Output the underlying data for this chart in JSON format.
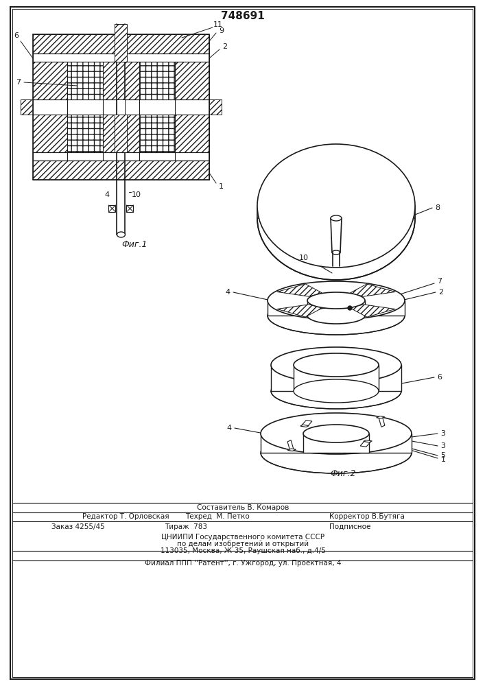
{
  "patent_number": "748691",
  "bg": "#ffffff",
  "lc": "#1a1a1a",
  "fig1_label": "Фиг.1",
  "fig2_label": "Фиг.2",
  "footer": [
    "Составитель В. Комаров",
    "Редактор Т. Орловская",
    "Техред  М. Петко",
    "Корректор В.Бутяга",
    "Заказ 4255/45",
    "Тираж  783",
    "Подписное",
    "ЦНИИПИ Государственного комитета СССР",
    "по делам изобретений и открытий",
    "113035, Москва, Ж-35, Раушская наб., д.4/5",
    "Филиал ППП ''Pатент'', г. Ужгород, ул. Проектная, 4"
  ]
}
